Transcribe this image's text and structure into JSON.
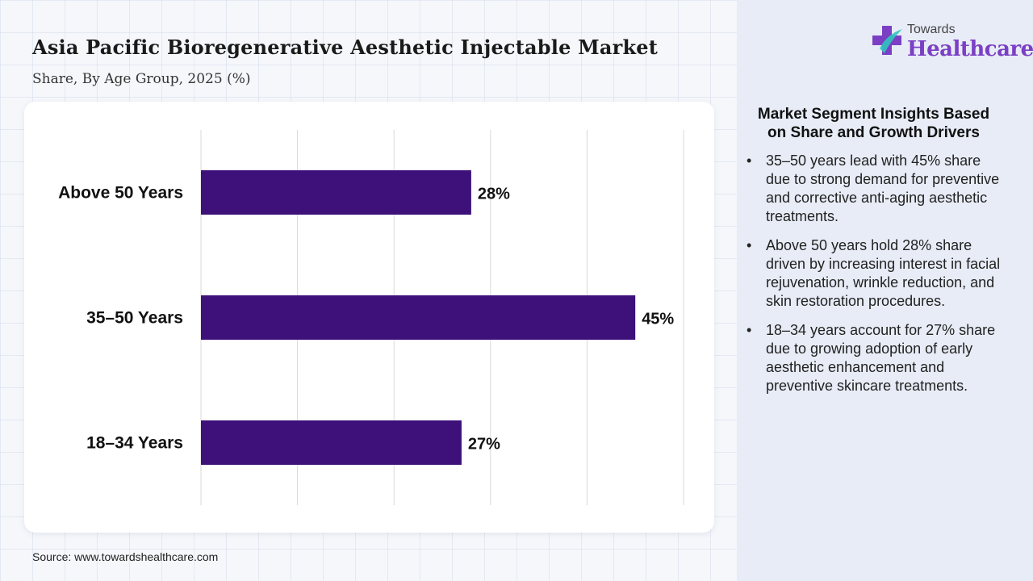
{
  "title": "Asia Pacific Bioregenerative Aesthetic Injectable Market",
  "subtitle": "Share, By Age Group, 2025 (%)",
  "source": "Source: www.towardshealthcare.com",
  "logo": {
    "top_text": "Towards",
    "bottom_text": "Healthcare"
  },
  "colors": {
    "bar": "#3e1079",
    "logo_accent": "#7b3fc4",
    "grid": "#d9d9d9"
  },
  "insights": {
    "heading": "Market Segment Insights Based on Share and Growth Drivers",
    "bullet_symbol": "•",
    "items": [
      "35–50 years lead with 45% share due to strong demand for preventive and corrective anti-aging aesthetic treatments.",
      "Above 50 years hold 28% share driven by increasing interest in facial rejuvenation, wrinkle reduction, and skin restoration procedures.",
      "18–34 years account for 27% share due to growing adoption of early aesthetic enhancement and preventive skincare treatments."
    ]
  },
  "chart_data": {
    "type": "bar",
    "orientation": "horizontal",
    "categories": [
      "Above 50 Years",
      "35–50 Years",
      "18–34 Years"
    ],
    "values": [
      28,
      45,
      27
    ],
    "value_labels": [
      "28%",
      "45%",
      "27%"
    ],
    "xlim": [
      0,
      50
    ],
    "grid": true,
    "legend": "none"
  }
}
